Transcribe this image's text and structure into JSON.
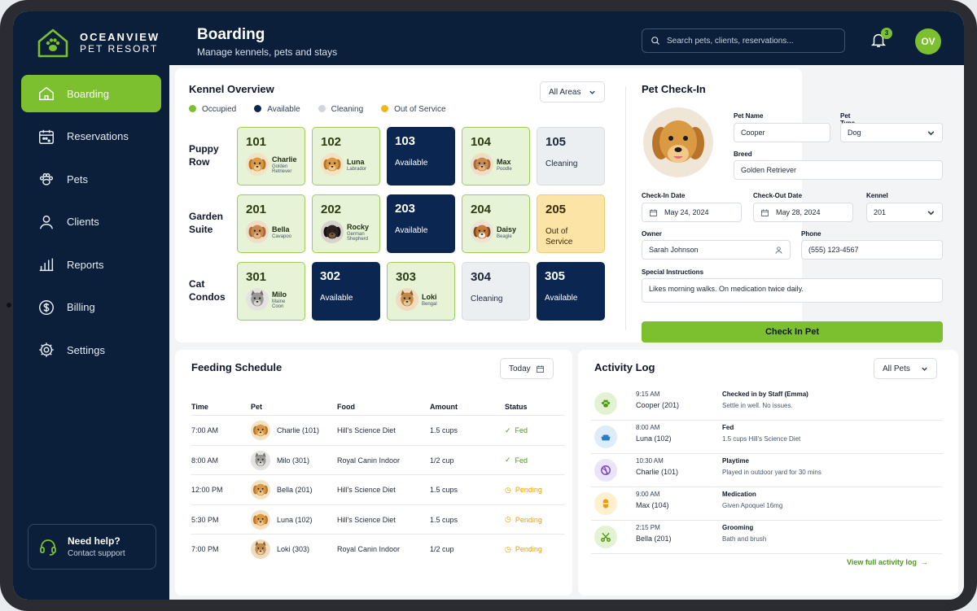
{
  "brand": {
    "line1": "OCEANVIEW",
    "line2": "PET RESORT"
  },
  "header": {
    "title": "Boarding",
    "subtitle": "Manage kennels, pets and stays",
    "search_placeholder": "Search pets, clients, reservations...",
    "notification_count": "3",
    "user_initials": "OV"
  },
  "sidebar": {
    "items": [
      {
        "label": "Boarding",
        "icon": "house-icon",
        "active": true
      },
      {
        "label": "Reservations",
        "icon": "calendar-icon",
        "active": false
      },
      {
        "label": "Pets",
        "icon": "paw-icon",
        "active": false
      },
      {
        "label": "Clients",
        "icon": "user-icon",
        "active": false
      },
      {
        "label": "Reports",
        "icon": "bar-chart-icon",
        "active": false
      },
      {
        "label": "Billing",
        "icon": "dollar-icon",
        "active": false
      },
      {
        "label": "Settings",
        "icon": "gear-icon",
        "active": false
      }
    ],
    "help": {
      "title": "Need help?",
      "subtitle": "Contact support"
    }
  },
  "colors": {
    "accent": "#7cbf2f",
    "navy": "#0b1f3a",
    "available": "#0b2650",
    "cleaning": "#d8dde3",
    "out_of_service": "#f2b51c"
  },
  "kennel_overview": {
    "title": "Kennel Overview",
    "area_filter": "All Areas",
    "legend": [
      {
        "label": "Occupied",
        "color": "#7cbf2f"
      },
      {
        "label": "Available",
        "color": "#0b2650"
      },
      {
        "label": "Cleaning",
        "color": "#d1d5db"
      },
      {
        "label": "Out of Service",
        "color": "#f2b51c"
      }
    ],
    "rows": [
      {
        "label_1": "Puppy",
        "label_2": "Row",
        "kennels": [
          {
            "num": "101",
            "state": "occupied",
            "pet": "Charlie",
            "breed": "Golden Retriever",
            "avatar": "golden"
          },
          {
            "num": "102",
            "state": "occupied",
            "pet": "Luna",
            "breed": "Labrador",
            "avatar": "golden"
          },
          {
            "num": "103",
            "state": "available",
            "status": "Available"
          },
          {
            "num": "104",
            "state": "occupied",
            "pet": "Max",
            "breed": "Poodle",
            "avatar": "poodle"
          },
          {
            "num": "105",
            "state": "cleaning",
            "status": "Cleaning"
          }
        ]
      },
      {
        "label_1": "Garden",
        "label_2": "Suite",
        "kennels": [
          {
            "num": "201",
            "state": "occupied",
            "pet": "Bella",
            "breed": "Cavapoo",
            "avatar": "poodle"
          },
          {
            "num": "202",
            "state": "occupied",
            "pet": "Rocky",
            "breed": "German Shepherd",
            "avatar": "shepherd"
          },
          {
            "num": "203",
            "state": "available",
            "status": "Available"
          },
          {
            "num": "204",
            "state": "occupied",
            "pet": "Daisy",
            "breed": "Beagle",
            "avatar": "beagle"
          },
          {
            "num": "205",
            "state": "oos",
            "status": "Out of Service"
          }
        ]
      },
      {
        "label_1": "Cat",
        "label_2": "Condos",
        "kennels": [
          {
            "num": "301",
            "state": "occupied",
            "pet": "Milo",
            "breed": "Maine Coon",
            "avatar": "graycat"
          },
          {
            "num": "302",
            "state": "available",
            "status": "Available"
          },
          {
            "num": "303",
            "state": "occupied",
            "pet": "Loki",
            "breed": "Bengal",
            "avatar": "bengal"
          },
          {
            "num": "304",
            "state": "cleaning",
            "status": "Cleaning"
          },
          {
            "num": "305",
            "state": "available",
            "status": "Available"
          }
        ]
      }
    ]
  },
  "checkin": {
    "title": "Pet Check-In",
    "pet_name_label": "Pet Name",
    "pet_name": "Cooper",
    "pet_type_label": "Pet Type",
    "pet_type": "Dog",
    "breed_label": "Breed",
    "breed": "Golden Retriever",
    "checkin_date_label": "Check-In Date",
    "checkin_date": "May 24, 2024",
    "checkout_date_label": "Check-Out Date",
    "checkout_date": "May 28, 2024",
    "kennel_label": "Kennel",
    "kennel": "201",
    "owner_label": "Owner",
    "owner": "Sarah Johnson",
    "phone_label": "Phone",
    "phone": "(555) 123-4567",
    "instructions_label": "Special Instructions",
    "instructions": "Likes morning walks. On medication twice daily.",
    "button": "Check In Pet"
  },
  "feeding": {
    "title": "Feeding Schedule",
    "date_filter": "Today",
    "columns": [
      "Time",
      "Pet",
      "Food",
      "Amount",
      "Status"
    ],
    "rows": [
      {
        "time": "7:00 AM",
        "pet": "Charlie (101)",
        "avatar": "golden",
        "food": "Hill's Science Diet",
        "amount": "1.5 cups",
        "status": "Fed"
      },
      {
        "time": "8:00 AM",
        "pet": "Milo (301)",
        "avatar": "graycat",
        "food": "Royal Canin Indoor",
        "amount": "1/2 cup",
        "status": "Fed"
      },
      {
        "time": "12:00 PM",
        "pet": "Bella (201)",
        "avatar": "golden",
        "food": "Hill's Science Diet",
        "amount": "1.5 cups",
        "status": "Pending"
      },
      {
        "time": "5:30 PM",
        "pet": "Luna (102)",
        "avatar": "golden",
        "food": "Hill's Science Diet",
        "amount": "1.5 cups",
        "status": "Pending"
      },
      {
        "time": "7:00 PM",
        "pet": "Loki (303)",
        "avatar": "bengal",
        "food": "Royal Canin Indoor",
        "amount": "1/2 cup",
        "status": "Pending"
      }
    ]
  },
  "activity": {
    "title": "Activity Log",
    "pet_filter": "All Pets",
    "rows": [
      {
        "time": "9:15 AM",
        "pet": "Cooper (201)",
        "event": "Checked in by Staff (Emma)",
        "detail": "Settle in well. No issues.",
        "icon": "paw-icon",
        "bg": "#e3f2d2",
        "fg": "#4e9a16"
      },
      {
        "time": "8:00 AM",
        "pet": "Luna (102)",
        "event": "Fed",
        "detail": "1.5 cups Hill's Science Diet",
        "icon": "food-bowl-icon",
        "bg": "#dcecf9",
        "fg": "#2b7cc4"
      },
      {
        "time": "10:30 AM",
        "pet": "Charlie (101)",
        "event": "Playtime",
        "detail": "Played in outdoor yard for 30 mins",
        "icon": "ball-icon",
        "bg": "#ebe3f7",
        "fg": "#7448c2"
      },
      {
        "time": "9:00 AM",
        "pet": "Max (104)",
        "event": "Medication",
        "detail": "Given Apoquel 16mg",
        "icon": "pill-icon",
        "bg": "#fdf0cf",
        "fg": "#e8a000"
      },
      {
        "time": "2:15 PM",
        "pet": "Bella (201)",
        "event": "Grooming",
        "detail": "Bath and brush",
        "icon": "scissors-icon",
        "bg": "#e3f2d2",
        "fg": "#4e9a16"
      }
    ],
    "view_all": "View full activity log"
  }
}
